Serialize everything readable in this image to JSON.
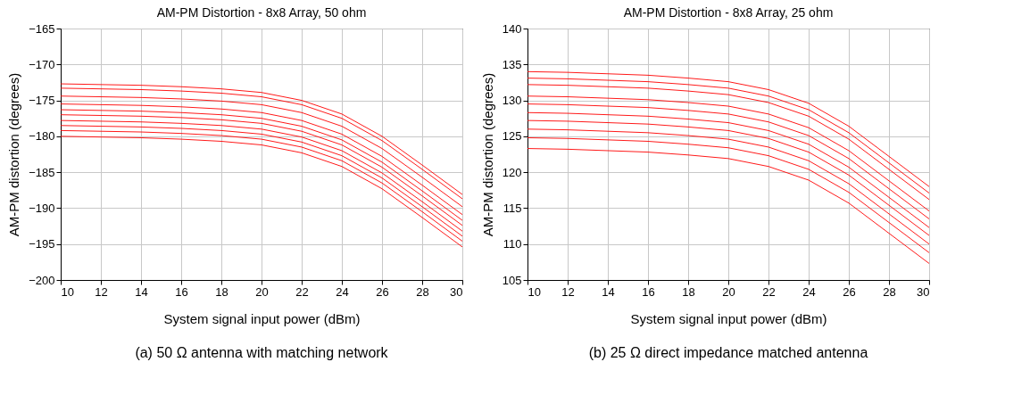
{
  "chart_data": [
    {
      "type": "line",
      "title": "AM-PM Distortion - 8x8 Array, 50 ohm",
      "xlabel": "System signal input power (dBm)",
      "ylabel": "AM-PM distortion (degrees)",
      "annotations": [
        "(a) 50 Ω antenna with matching network"
      ],
      "xlim": [
        10,
        30
      ],
      "xticks": [
        10,
        12,
        14,
        16,
        18,
        20,
        22,
        24,
        26,
        28,
        30
      ],
      "ylim": [
        -200,
        -165
      ],
      "yticks": [
        -200,
        -195,
        -190,
        -185,
        -180,
        -175,
        -170,
        -165
      ],
      "grid": true,
      "x": [
        10,
        12,
        14,
        16,
        18,
        20,
        22,
        24,
        26,
        28,
        30
      ],
      "series": [
        {
          "color": "#ff0000",
          "values": [
            -172.7,
            -172.8,
            -172.9,
            -173.1,
            -173.4,
            -173.9,
            -175.0,
            -176.9,
            -180.0,
            -184.0,
            -188.1
          ]
        },
        {
          "color": "#ff0000",
          "values": [
            -173.3,
            -173.4,
            -173.5,
            -173.7,
            -174.0,
            -174.5,
            -175.6,
            -177.5,
            -180.6,
            -184.6,
            -188.7
          ]
        },
        {
          "color": "#ff0000",
          "values": [
            -174.4,
            -174.5,
            -174.6,
            -174.8,
            -175.1,
            -175.6,
            -176.7,
            -178.6,
            -181.7,
            -185.7,
            -189.8
          ]
        },
        {
          "color": "#ff0000",
          "values": [
            -175.5,
            -175.6,
            -175.7,
            -175.9,
            -176.2,
            -176.7,
            -177.8,
            -179.7,
            -182.8,
            -186.8,
            -190.9
          ]
        },
        {
          "color": "#ff0000",
          "values": [
            -176.3,
            -176.4,
            -176.5,
            -176.7,
            -177.0,
            -177.5,
            -178.6,
            -180.5,
            -183.6,
            -187.6,
            -191.7
          ]
        },
        {
          "color": "#ff0000",
          "values": [
            -177.0,
            -177.1,
            -177.2,
            -177.4,
            -177.7,
            -178.2,
            -179.3,
            -181.2,
            -184.3,
            -188.3,
            -192.4
          ]
        },
        {
          "color": "#ff0000",
          "values": [
            -177.8,
            -177.9,
            -178.0,
            -178.2,
            -178.5,
            -179.0,
            -180.1,
            -182.0,
            -185.1,
            -189.1,
            -193.2
          ]
        },
        {
          "color": "#ff0000",
          "values": [
            -178.5,
            -178.6,
            -178.7,
            -178.9,
            -179.2,
            -179.7,
            -180.8,
            -182.7,
            -185.8,
            -189.8,
            -193.9
          ]
        },
        {
          "color": "#ff0000",
          "values": [
            -179.2,
            -179.3,
            -179.4,
            -179.6,
            -179.9,
            -180.4,
            -181.5,
            -183.4,
            -186.5,
            -190.5,
            -194.6
          ]
        },
        {
          "color": "#ff0000",
          "values": [
            -180.0,
            -180.1,
            -180.2,
            -180.4,
            -180.7,
            -181.2,
            -182.3,
            -184.2,
            -187.3,
            -191.3,
            -195.4
          ]
        }
      ]
    },
    {
      "type": "line",
      "title": "AM-PM Distortion - 8x8 Array, 25 ohm",
      "xlabel": "System signal input power (dBm)",
      "ylabel": "AM-PM distortion (degrees)",
      "annotations": [
        "(b) 25 Ω direct impedance matched antenna"
      ],
      "xlim": [
        10,
        30
      ],
      "xticks": [
        10,
        12,
        14,
        16,
        18,
        20,
        22,
        24,
        26,
        28,
        30
      ],
      "ylim": [
        105,
        140
      ],
      "yticks": [
        105,
        110,
        115,
        120,
        125,
        130,
        135,
        140
      ],
      "grid": true,
      "x": [
        10,
        12,
        14,
        16,
        18,
        20,
        22,
        24,
        26,
        28,
        30
      ],
      "series": [
        {
          "color": "#ff0000",
          "values": [
            134.0,
            133.9,
            133.7,
            133.5,
            133.1,
            132.6,
            131.5,
            129.6,
            126.4,
            122.2,
            118.0
          ]
        },
        {
          "color": "#ff0000",
          "values": [
            133.1,
            133.0,
            132.8,
            132.6,
            132.2,
            131.7,
            130.6,
            128.7,
            125.5,
            121.3,
            117.1
          ]
        },
        {
          "color": "#ff0000",
          "values": [
            132.2,
            132.1,
            131.9,
            131.7,
            131.3,
            130.8,
            129.7,
            127.8,
            124.6,
            120.4,
            116.2
          ]
        },
        {
          "color": "#ff0000",
          "values": [
            130.6,
            130.5,
            130.3,
            130.1,
            129.7,
            129.2,
            128.1,
            126.2,
            123.0,
            118.8,
            114.6
          ]
        },
        {
          "color": "#ff0000",
          "values": [
            129.5,
            129.4,
            129.2,
            129.0,
            128.6,
            128.1,
            127.0,
            125.1,
            121.9,
            117.7,
            113.5
          ]
        },
        {
          "color": "#ff0000",
          "values": [
            128.3,
            128.2,
            128.0,
            127.8,
            127.4,
            126.9,
            125.8,
            123.9,
            120.7,
            116.5,
            112.3
          ]
        },
        {
          "color": "#ff0000",
          "values": [
            127.2,
            127.1,
            126.9,
            126.7,
            126.3,
            125.8,
            124.7,
            122.8,
            119.6,
            115.4,
            111.2
          ]
        },
        {
          "color": "#ff0000",
          "values": [
            126.0,
            125.9,
            125.7,
            125.5,
            125.1,
            124.6,
            123.5,
            121.6,
            118.4,
            114.2,
            110.0
          ]
        },
        {
          "color": "#ff0000",
          "values": [
            124.8,
            124.7,
            124.5,
            124.3,
            123.9,
            123.4,
            122.3,
            120.4,
            117.2,
            113.0,
            108.8
          ]
        },
        {
          "color": "#ff0000",
          "values": [
            123.3,
            123.2,
            123.0,
            122.8,
            122.4,
            121.9,
            120.8,
            118.9,
            115.7,
            111.5,
            107.3
          ]
        }
      ]
    }
  ]
}
